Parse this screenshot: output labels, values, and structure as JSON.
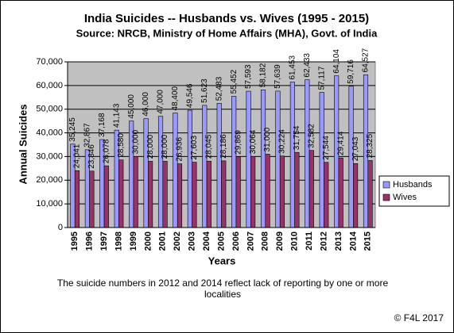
{
  "chart_data": {
    "type": "bar",
    "title": "India Suicides -- Husbands vs. Wives (1995 - 2015)",
    "subtitle": "Source: NRCB, Ministry of Home Affairs (MHA), Govt. of India",
    "x_label": "Years",
    "y_label": "Annual Suicides",
    "annotation": "The suicide numbers in 2012 and 2014 reflect lack of reporting by one or more localities",
    "footer": "© F4L 2017",
    "categories": [
      "1995",
      "1996",
      "1997",
      "1998",
      "1999",
      "2000",
      "2001",
      "2002",
      "2003",
      "2004",
      "2005",
      "2006",
      "2007",
      "2008",
      "2009",
      "2010",
      "2011",
      "2012",
      "2013",
      "2014",
      "2015"
    ],
    "series": [
      {
        "name": "Husbands",
        "color": "#9999ff",
        "values": [
          35245,
          32867,
          37168,
          41143,
          45000,
          46000,
          47000,
          48400,
          49546,
          51623,
          52483,
          55452,
          57593,
          58182,
          57639,
          61453,
          62433,
          57117,
          64104,
          59716,
          64527
        ],
        "value_labels": [
          "35,245",
          "32,867",
          "37,168",
          "41,143",
          "45,000",
          "46,000",
          "47,000",
          "48,400",
          "49,546",
          "51,623",
          "52,483",
          "55,452",
          "57,593",
          "58,182",
          "57,639",
          "61,453",
          "62,433",
          "57,117",
          "64,104",
          "59,716",
          "64,527"
        ]
      },
      {
        "name": "Wives",
        "color": "#993366",
        "values": [
          24041,
          23846,
          26078,
          28580,
          30000,
          28000,
          28000,
          26936,
          27603,
          28045,
          28186,
          29869,
          30064,
          31000,
          30224,
          31754,
          32582,
          27544,
          29414,
          27043,
          28325
        ],
        "value_labels": [
          "24,041",
          "23,846",
          "26,078",
          "28,580",
          "30,000",
          "28,000",
          "28,000",
          "26,936",
          "27,603",
          "28,045",
          "28,186",
          "29,869",
          "30,064",
          "31,000",
          "30,224",
          "31,754",
          "32,582",
          "27,544",
          "29,414",
          "27,043",
          "28,325"
        ]
      }
    ],
    "ylim": [
      0,
      70000
    ],
    "yticks": [
      0,
      {
        "value": 10000,
        "label": "10,000"
      },
      {
        "value": 20000,
        "label": "20,000"
      },
      {
        "value": 30000,
        "label": "30,000"
      },
      {
        "value": 40000,
        "label": "40,000"
      },
      {
        "value": 50000,
        "label": "50,000"
      },
      {
        "value": 60000,
        "label": "60,000"
      },
      {
        "value": 70000,
        "label": "70,000"
      }
    ],
    "grid": true,
    "legend": "right"
  }
}
